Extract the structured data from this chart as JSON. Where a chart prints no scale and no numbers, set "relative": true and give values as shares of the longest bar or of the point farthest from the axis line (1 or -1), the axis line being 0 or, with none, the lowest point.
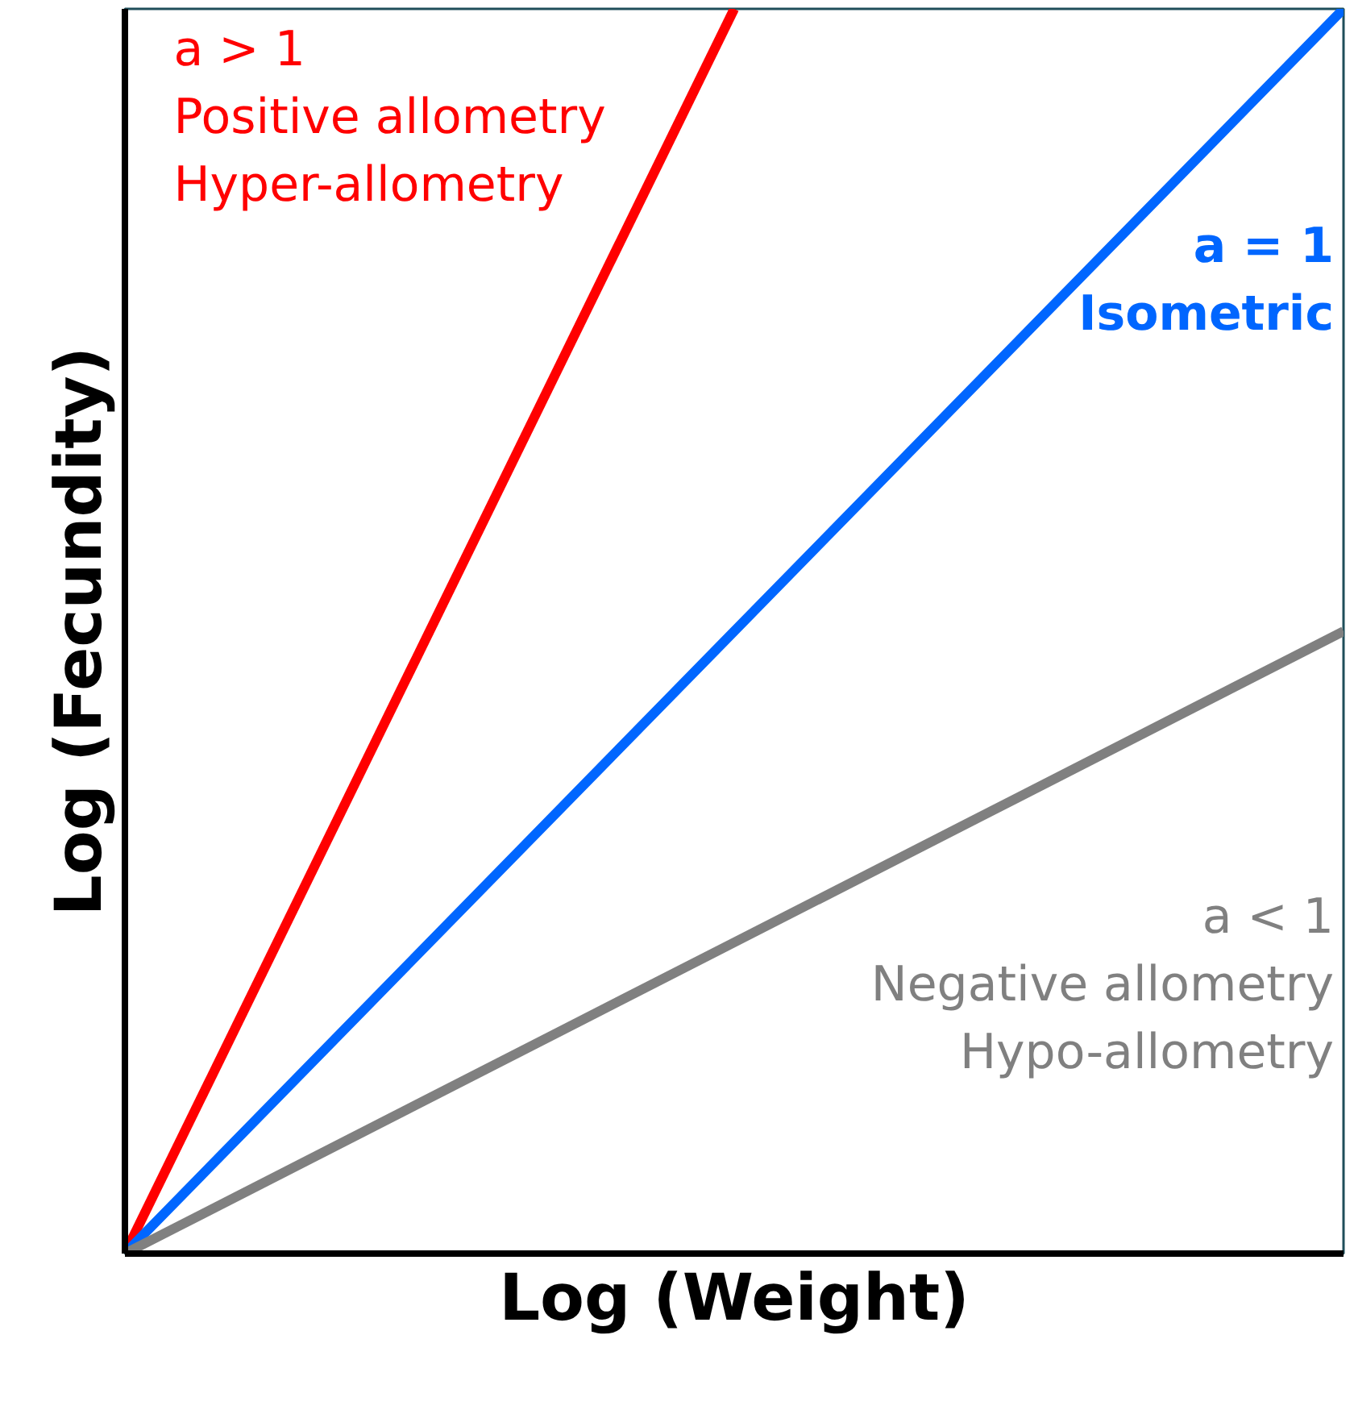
{
  "chart_data": {
    "type": "line",
    "relative": true,
    "xlabel": "Log (Weight)",
    "ylabel": "Log (Fecundity)",
    "categories": [
      null,
      null,
      null
    ],
    "series": [
      {
        "name": "a > 1\nPositive allometry\nHyper-allometry",
        "color": "#ff0000",
        "values": [
          0,
          1,
          null
        ]
      },
      {
        "name": "a = 1\nIsometric",
        "color": "#0066ff",
        "values": [
          0,
          0.5,
          1
        ]
      },
      {
        "name": "a < 1\nNegative allometry\nHypo-allometry",
        "color": "#808080",
        "values": [
          0,
          0.25,
          0.5
        ]
      }
    ]
  }
}
